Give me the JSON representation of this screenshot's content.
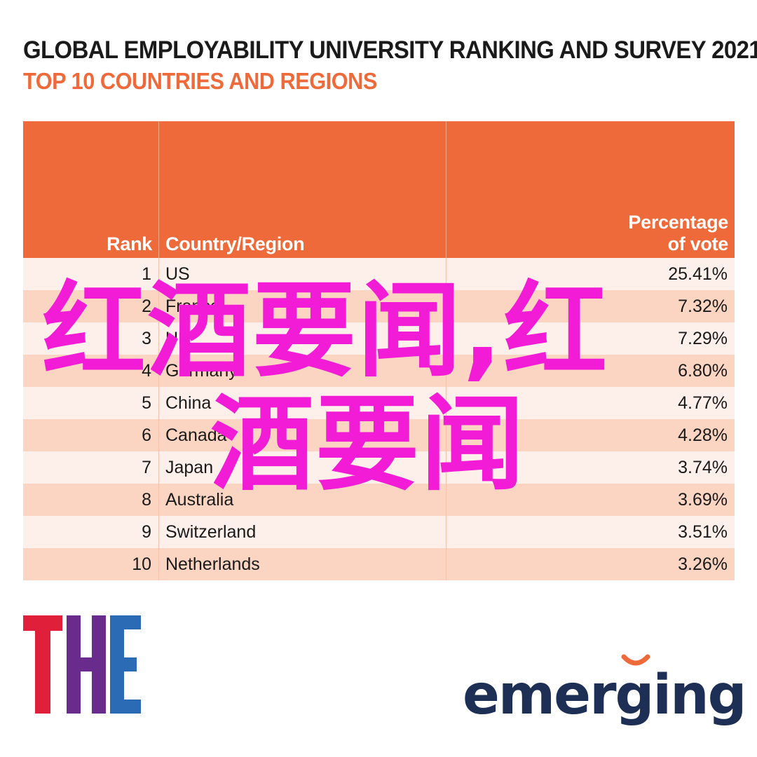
{
  "title": "GLOBAL EMPLOYABILITY UNIVERSITY RANKING AND SURVEY 2021",
  "subtitle": "TOP 10 COUNTRIES AND REGIONS",
  "columns": {
    "rank": "Rank",
    "country": "Country/Region",
    "pct_line1": "Percentage",
    "pct_line2": "of vote"
  },
  "chart_data": {
    "type": "table",
    "title": "GLOBAL EMPLOYABILITY UNIVERSITY RANKING AND SURVEY 2021",
    "subtitle": "TOP 10 COUNTRIES AND REGIONS",
    "columns": [
      "Rank",
      "Country/Region",
      "Percentage of vote"
    ],
    "rows": [
      {
        "rank": "1",
        "country": "US",
        "pct": "25.41%"
      },
      {
        "rank": "2",
        "country": "France",
        "pct": "7.32%"
      },
      {
        "rank": "3",
        "country": "UK",
        "pct": "7.29%"
      },
      {
        "rank": "4",
        "country": "Germany",
        "pct": "6.80%"
      },
      {
        "rank": "5",
        "country": "China",
        "pct": "4.77%"
      },
      {
        "rank": "6",
        "country": "Canada",
        "pct": "4.28%"
      },
      {
        "rank": "7",
        "country": "Japan",
        "pct": "3.74%"
      },
      {
        "rank": "8",
        "country": "Australia",
        "pct": "3.69%"
      },
      {
        "rank": "9",
        "country": "Switzerland",
        "pct": "3.51%"
      },
      {
        "rank": "10",
        "country": "Netherlands",
        "pct": "3.26%"
      }
    ]
  },
  "watermark": {
    "line1": "红酒要闻,红",
    "line2": "酒要闻",
    "color": "#f21cd6"
  },
  "logos": {
    "the": "THE",
    "emerging": "emerging"
  },
  "colors": {
    "accent": "#ef6a3a",
    "row_light": "#fdf0ea",
    "row_dark": "#fbd4c2",
    "emerging_navy": "#1d2f55",
    "the_red": "#e0203a",
    "the_purple": "#6a2c8c",
    "the_blue": "#2b6bb5"
  }
}
